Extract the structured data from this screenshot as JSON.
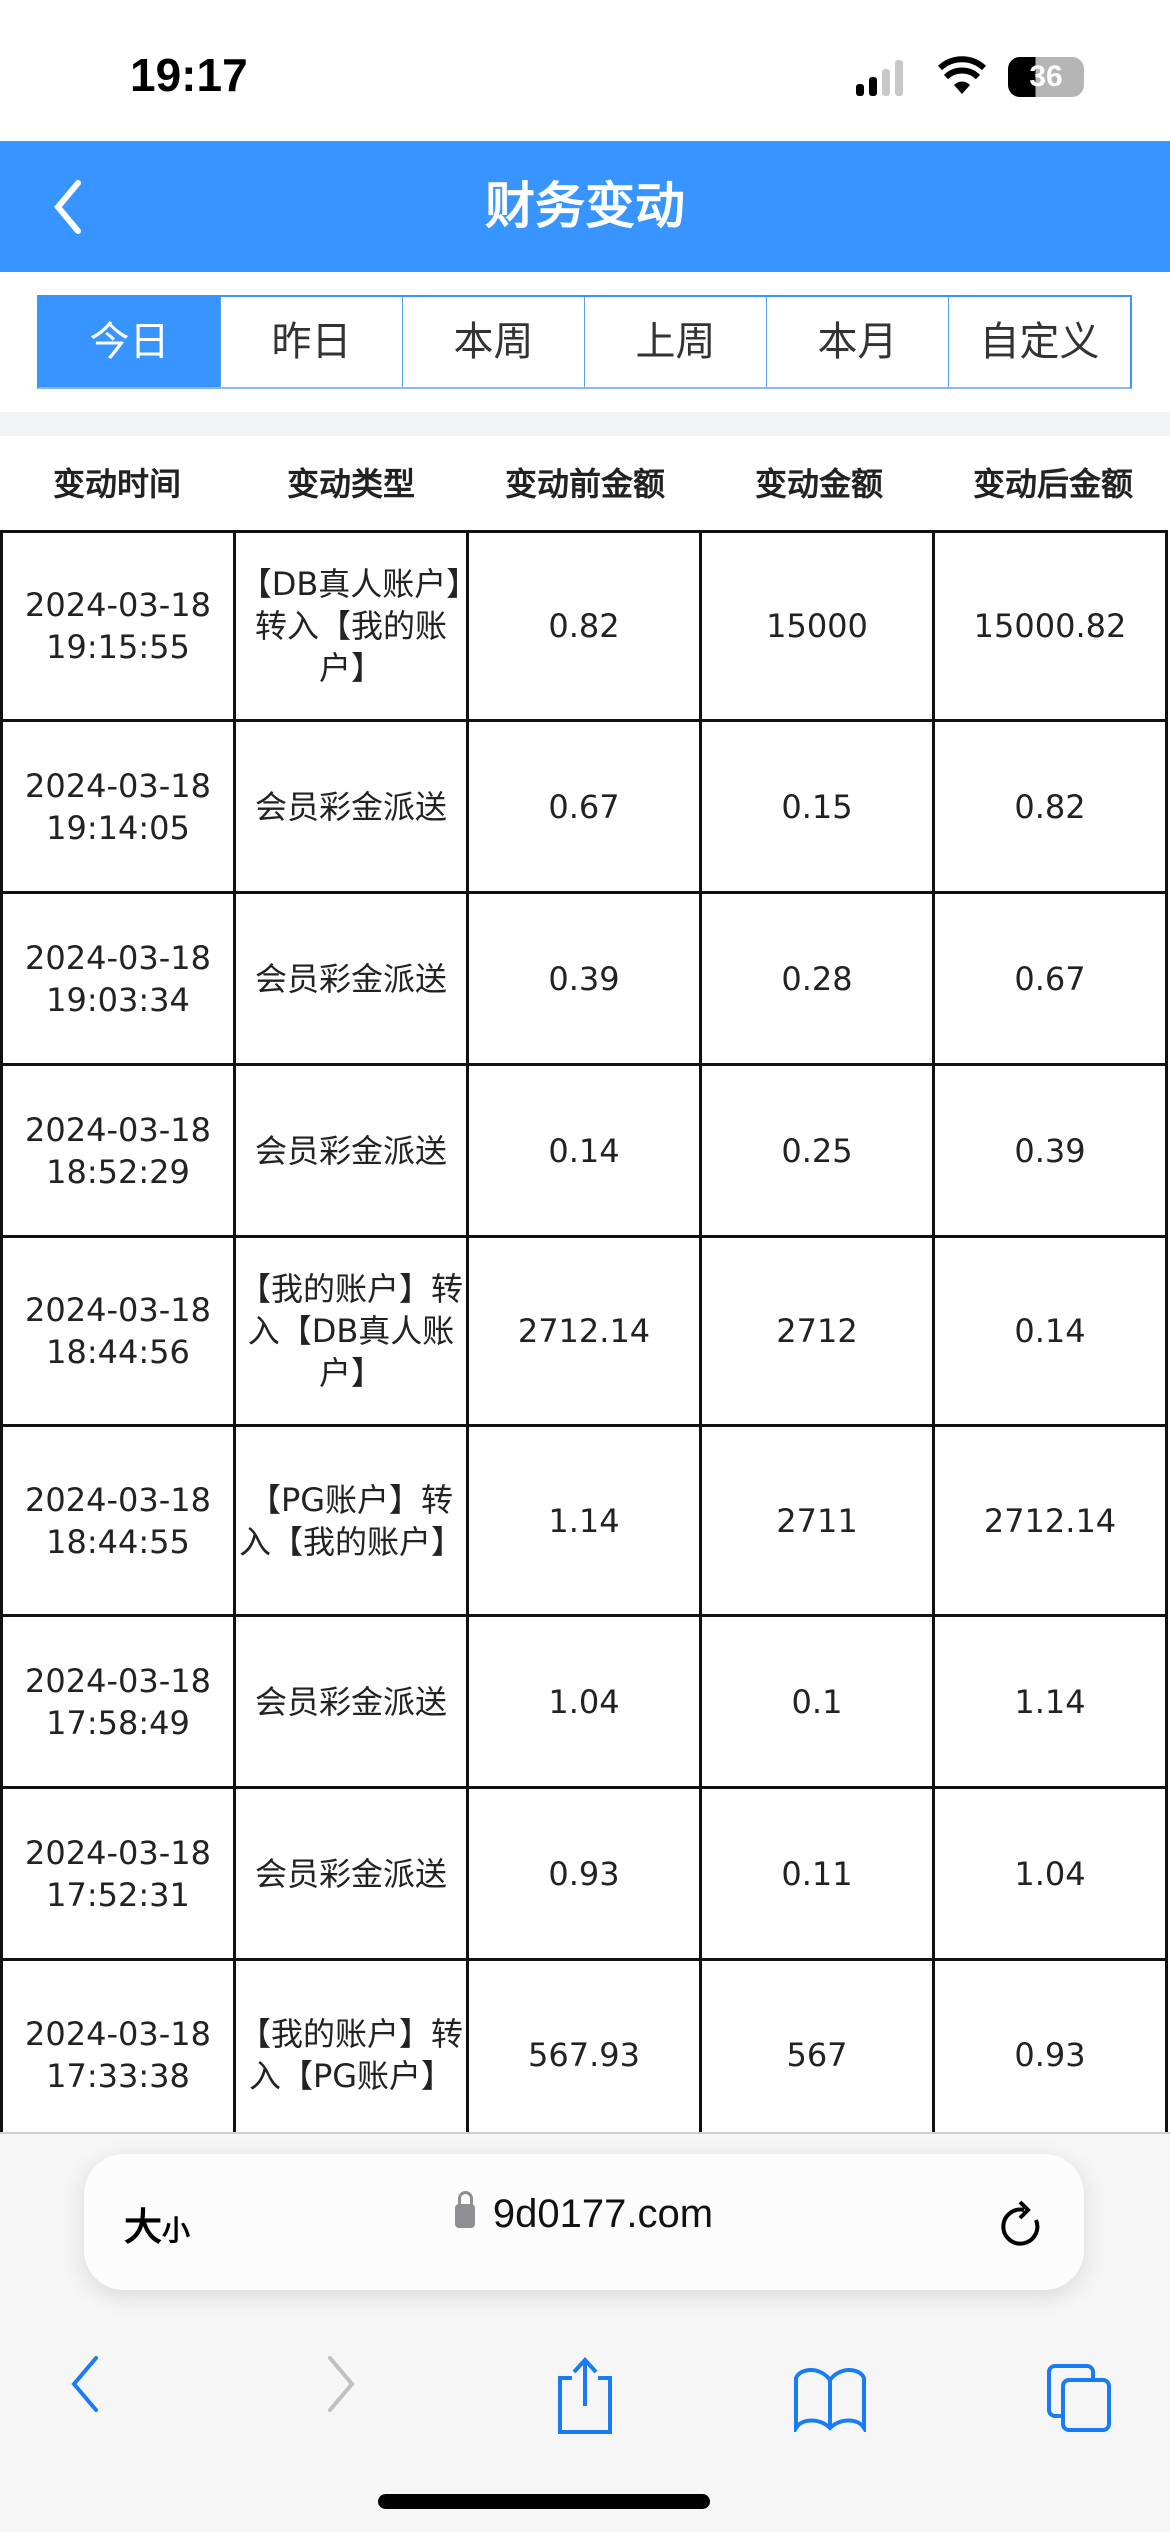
{
  "status_bar": {
    "time": "19:17",
    "battery": "36"
  },
  "header": {
    "title": "财务变动",
    "back_icon": "chevron-left-icon",
    "color": "#3894FF"
  },
  "tabs": [
    {
      "label": "今日",
      "active": true
    },
    {
      "label": "昨日"
    },
    {
      "label": "本周"
    },
    {
      "label": "上周"
    },
    {
      "label": "本月"
    },
    {
      "label": "自定义"
    }
  ],
  "table": {
    "columns": [
      "变动时间",
      "变动类型",
      "变动前金额",
      "变动金额",
      "变动后金额"
    ],
    "rows": [
      {
        "date": "2024-03-18",
        "time": "19:15:55",
        "type": "【DB真人账户】转入【我的账户】",
        "before": "0.82",
        "amount": "15000",
        "after": "15000.82"
      },
      {
        "date": "2024-03-18",
        "time": "19:14:05",
        "type": "会员彩金派送",
        "before": "0.67",
        "amount": "0.15",
        "after": "0.82"
      },
      {
        "date": "2024-03-18",
        "time": "19:03:34",
        "type": "会员彩金派送",
        "before": "0.39",
        "amount": "0.28",
        "after": "0.67"
      },
      {
        "date": "2024-03-18",
        "time": "18:52:29",
        "type": "会员彩金派送",
        "before": "0.14",
        "amount": "0.25",
        "after": "0.39"
      },
      {
        "date": "2024-03-18",
        "time": "18:44:56",
        "type": "【我的账户】转入【DB真人账户】",
        "before": "2712.14",
        "amount": "2712",
        "after": "0.14"
      },
      {
        "date": "2024-03-18",
        "time": "18:44:55",
        "type": "【PG账户】转入【我的账户】",
        "before": "1.14",
        "amount": "2711",
        "after": "2712.14"
      },
      {
        "date": "2024-03-18",
        "time": "17:58:49",
        "type": "会员彩金派送",
        "before": "1.04",
        "amount": "0.1",
        "after": "1.14"
      },
      {
        "date": "2024-03-18",
        "time": "17:52:31",
        "type": "会员彩金派送",
        "before": "0.93",
        "amount": "0.11",
        "after": "1.04"
      },
      {
        "date": "2024-03-18",
        "time": "17:33:38",
        "type": "【我的账户】转入【PG账户】",
        "before": "567.93",
        "amount": "567",
        "after": "0.93"
      }
    ]
  },
  "browser": {
    "text_size_big": "大",
    "text_size_small": "小",
    "url": "9d0177.com"
  }
}
